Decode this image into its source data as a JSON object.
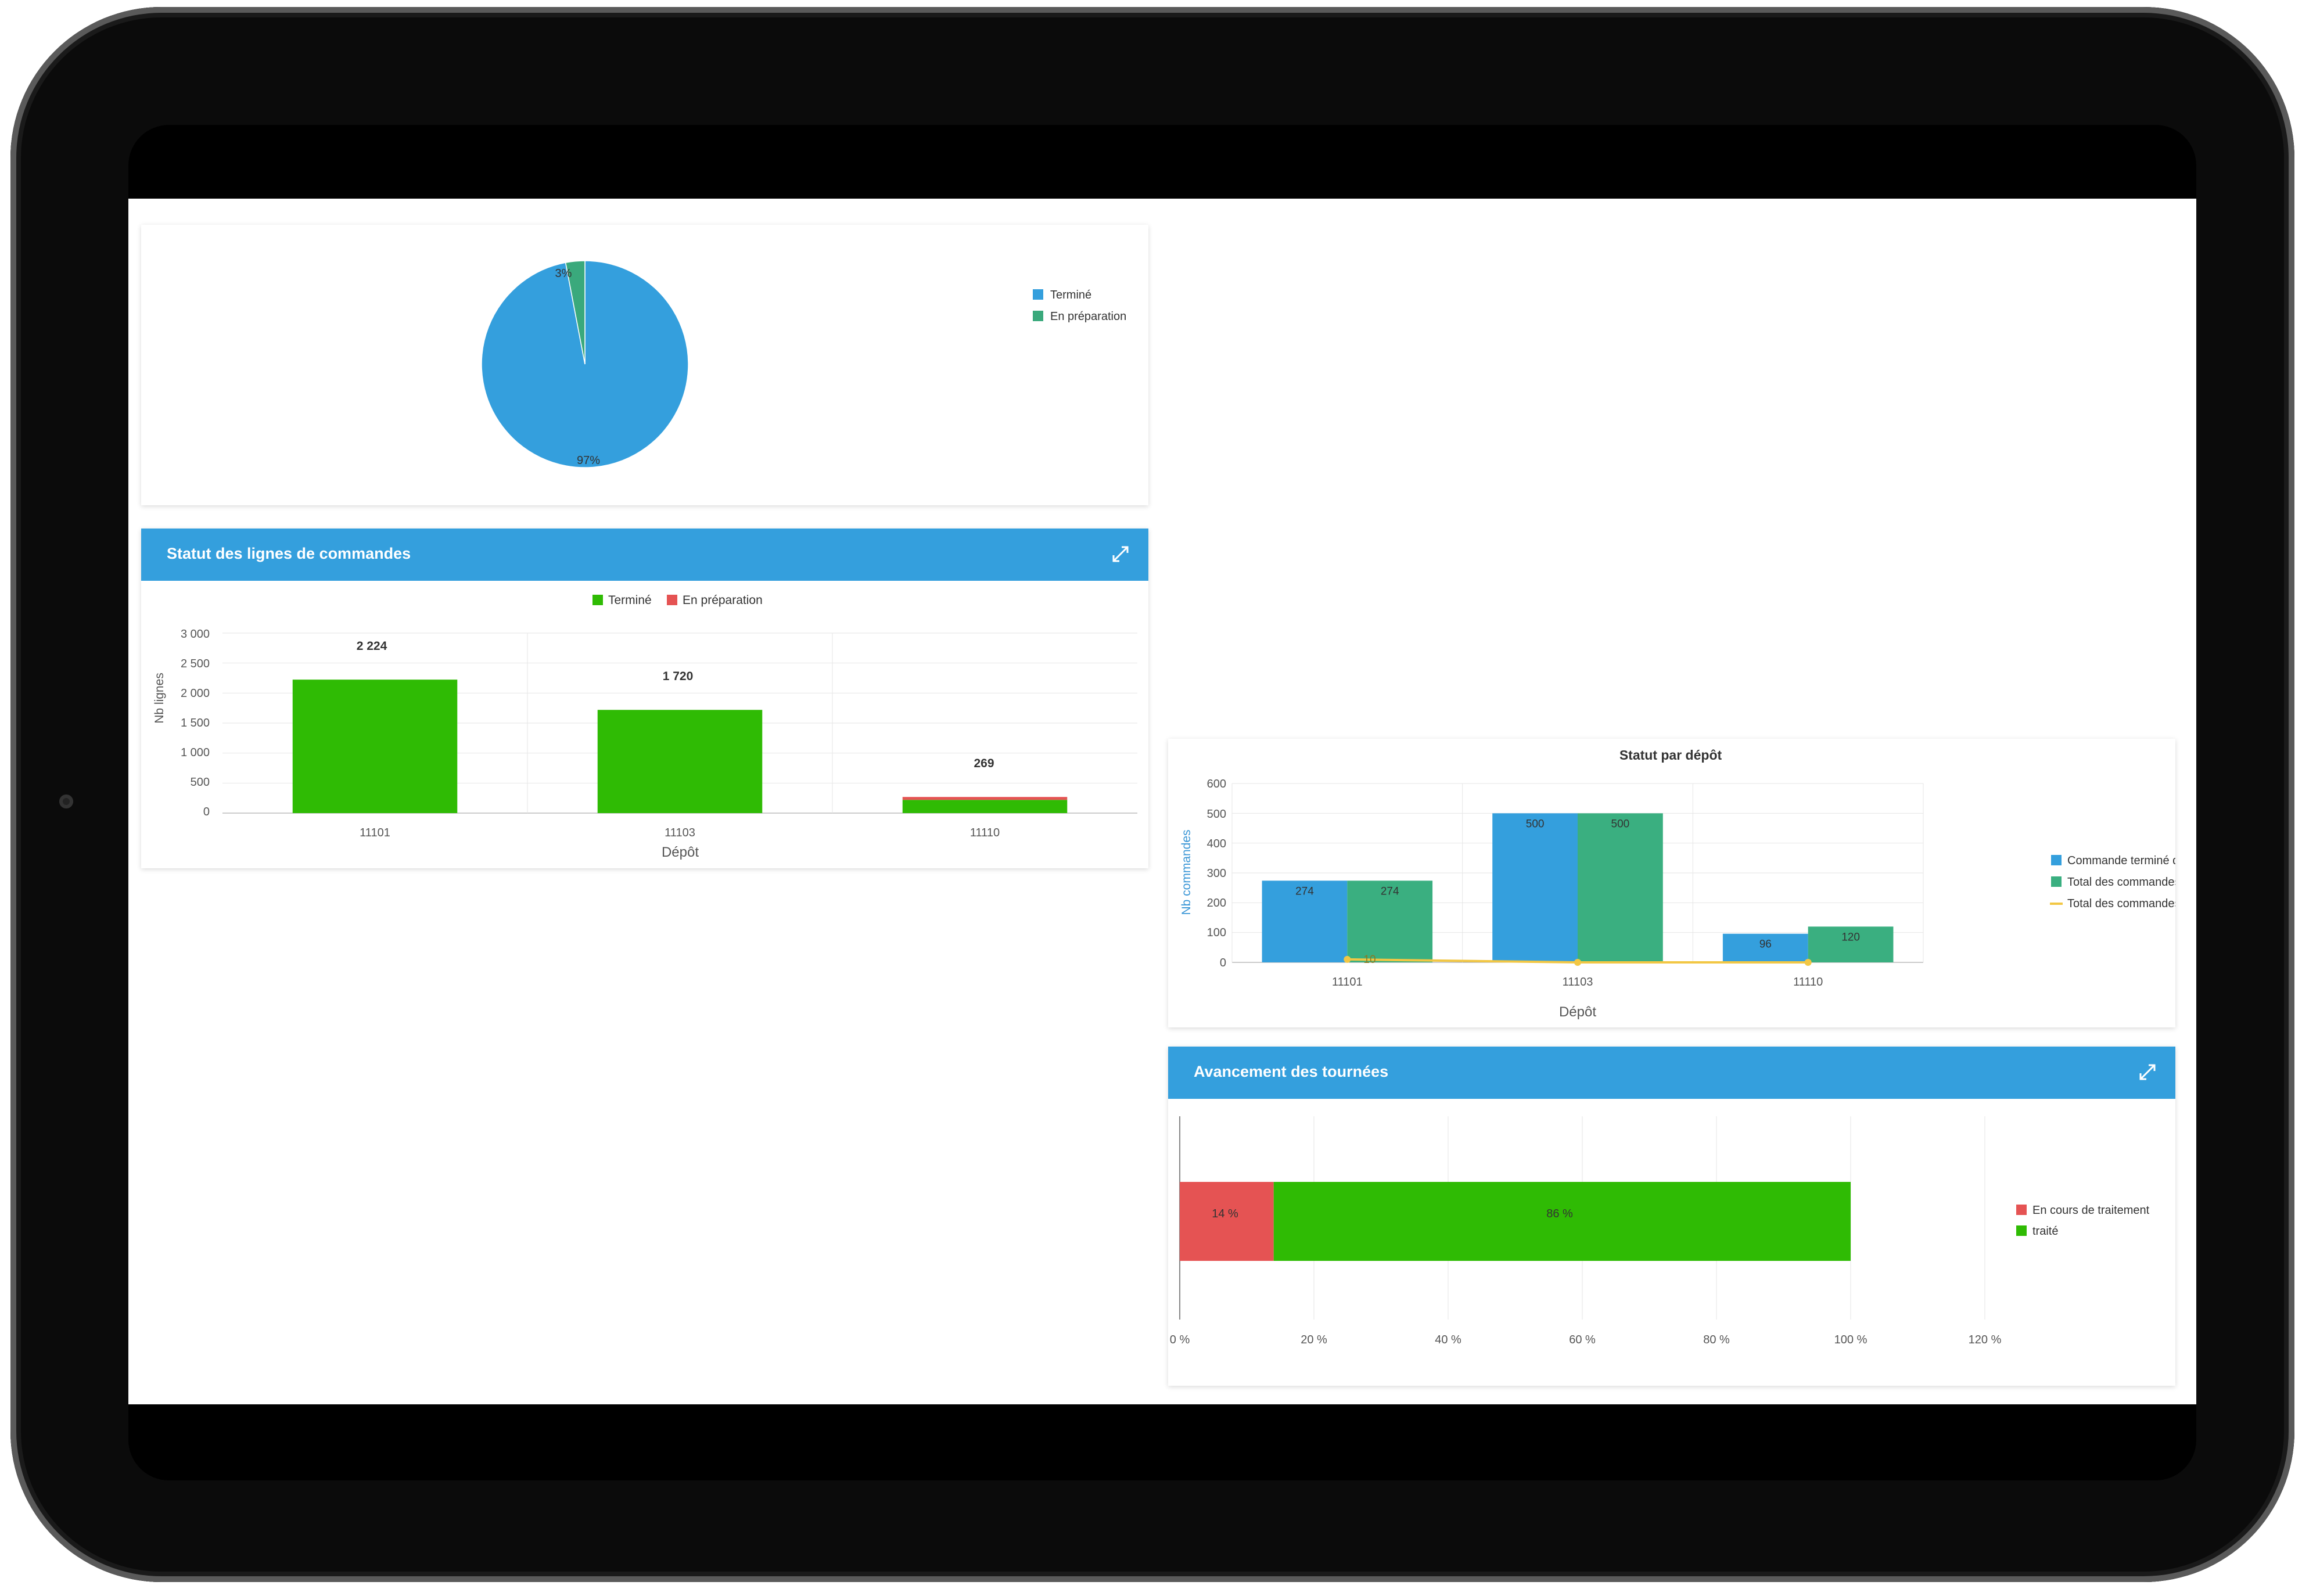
{
  "pie_panel": {
    "legend": [
      "Terminé",
      "En préparation"
    ],
    "labels": [
      "3%",
      "97%"
    ]
  },
  "lines_panel": {
    "title": "Statut des lignes de commandes",
    "legend": [
      "Terminé",
      "En préparation"
    ],
    "ylabel": "Nb lignes",
    "xlabel": "Dépôt",
    "yticks": [
      "3 000",
      "2 500",
      "2 000",
      "1 500",
      "1 000",
      "500",
      "0"
    ],
    "data_labels": {
      "totals": [
        "2 224",
        "1 720",
        "269"
      ],
      "inner": [
        "2 224",
        "1 720"
      ]
    }
  },
  "depot_panel": {
    "title": "Statut par dépôt",
    "ylabel": "Nb commandes",
    "xlabel": "Dépôt",
    "yticks": [
      "600",
      "500",
      "400",
      "300",
      "200",
      "100",
      "0"
    ],
    "legend": [
      "Commande terminé du jour",
      "Total des commandes du jour",
      "Total des commandes préparées hier"
    ],
    "line_label": "10"
  },
  "tours_panel": {
    "title": "Avancement des tournées",
    "legend": [
      "En cours de traitement",
      "traité"
    ],
    "xticks": [
      "0 %",
      "20 %",
      "40 %",
      "60 %",
      "80 %",
      "100 %",
      "120 %"
    ],
    "labels": [
      "14 %",
      "86 %"
    ]
  },
  "chart_data": [
    {
      "type": "pie",
      "categories": [
        "Terminé",
        "En préparation"
      ],
      "values": [
        97,
        3
      ],
      "colors": [
        "#349fdd",
        "#3aa97c"
      ]
    },
    {
      "type": "bar",
      "title": "Statut des lignes de commandes",
      "categories": [
        "11101",
        "11103",
        "11110"
      ],
      "series": [
        {
          "name": "Terminé",
          "values": [
            2224,
            1720,
            220
          ],
          "color": "#2fbb04"
        },
        {
          "name": "En préparation",
          "values": [
            0,
            0,
            49
          ],
          "color": "#e55353"
        }
      ],
      "stacked": true,
      "xlabel": "Dépôt",
      "ylabel": "Nb lignes",
      "ylim": [
        0,
        3000
      ],
      "legend_position": "top"
    },
    {
      "type": "bar",
      "title": "Statut par dépôt",
      "categories": [
        "11101",
        "11103",
        "11110"
      ],
      "series": [
        {
          "name": "Commande terminé du jour",
          "values": [
            274,
            500,
            96
          ],
          "color": "#349fdd"
        },
        {
          "name": "Total des commandes du jour",
          "values": [
            274,
            500,
            120
          ],
          "color": "#3aaf80"
        },
        {
          "name": "Total des commandes préparées hier",
          "values": [
            10,
            0,
            0
          ],
          "color": "#f2c744",
          "kind": "line"
        }
      ],
      "xlabel": "Dépôt",
      "ylabel": "Nb commandes",
      "ylim": [
        0,
        600
      ],
      "legend_position": "right"
    },
    {
      "type": "bar",
      "title": "Avancement des tournées",
      "orientation": "horizontal",
      "stacked": true,
      "series": [
        {
          "name": "En cours de traitement",
          "values": [
            14
          ],
          "color": "#e55353"
        },
        {
          "name": "traité",
          "values": [
            86
          ],
          "color": "#2fbb04"
        }
      ],
      "xlim": [
        0,
        120
      ],
      "legend_position": "right"
    }
  ]
}
